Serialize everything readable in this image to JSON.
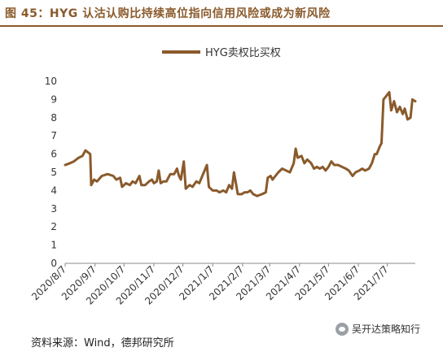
{
  "header": {
    "title": "图 45：HYG 认沽认购比持续高位指向信用风险或成为新风险"
  },
  "footer": {
    "source": "资料来源：Wind，德邦研究所"
  },
  "watermark": {
    "text": "吴开达策略知行",
    "icon": "wechat-icon"
  },
  "chart_data": {
    "type": "line",
    "title": "",
    "xlabel": "",
    "ylabel": "",
    "ylim": [
      0,
      10
    ],
    "yticks": [
      0,
      1,
      2,
      3,
      4,
      5,
      6,
      7,
      8,
      9,
      10
    ],
    "grid": false,
    "legend": "top-center",
    "line_color": "#8a5a2b",
    "x_tick_labels": [
      "2020/8/7",
      "2020/9/7",
      "2020/10/7",
      "2020/11/7",
      "2020/12/7",
      "2021/1/7",
      "2021/2/7",
      "2021/3/7",
      "2021/4/7",
      "2021/5/7",
      "2021/6/7",
      "2021/7/7"
    ],
    "x_start": "2020-08-07",
    "x_end": "2021-08-05",
    "series": [
      {
        "name": "HYG卖权比买权",
        "points": [
          [
            "2020-08-07",
            5.4
          ],
          [
            "2020-08-12",
            5.5
          ],
          [
            "2020-08-16",
            5.6
          ],
          [
            "2020-08-21",
            5.8
          ],
          [
            "2020-08-25",
            5.9
          ],
          [
            "2020-08-28",
            6.2
          ],
          [
            "2020-09-02",
            6.0
          ],
          [
            "2020-09-03",
            4.3
          ],
          [
            "2020-09-06",
            4.6
          ],
          [
            "2020-09-09",
            4.5
          ],
          [
            "2020-09-14",
            4.8
          ],
          [
            "2020-09-20",
            4.9
          ],
          [
            "2020-09-26",
            4.8
          ],
          [
            "2020-09-29",
            4.6
          ],
          [
            "2020-10-03",
            4.7
          ],
          [
            "2020-10-05",
            4.2
          ],
          [
            "2020-10-09",
            4.4
          ],
          [
            "2020-10-13",
            4.3
          ],
          [
            "2020-10-16",
            4.5
          ],
          [
            "2020-10-19",
            4.4
          ],
          [
            "2020-10-23",
            4.8
          ],
          [
            "2020-10-25",
            4.3
          ],
          [
            "2020-10-29",
            4.3
          ],
          [
            "2020-11-02",
            4.5
          ],
          [
            "2020-11-05",
            4.6
          ],
          [
            "2020-11-07",
            4.4
          ],
          [
            "2020-11-10",
            4.5
          ],
          [
            "2020-11-12",
            5.1
          ],
          [
            "2020-11-14",
            4.4
          ],
          [
            "2020-11-17",
            4.5
          ],
          [
            "2020-11-20",
            4.5
          ],
          [
            "2020-11-24",
            4.9
          ],
          [
            "2020-11-28",
            4.9
          ],
          [
            "2020-12-01",
            5.2
          ],
          [
            "2020-12-03",
            4.8
          ],
          [
            "2020-12-05",
            4.6
          ],
          [
            "2020-12-08",
            5.6
          ],
          [
            "2020-12-10",
            4.1
          ],
          [
            "2020-12-14",
            4.3
          ],
          [
            "2020-12-17",
            4.2
          ],
          [
            "2020-12-21",
            4.5
          ],
          [
            "2020-12-24",
            4.4
          ],
          [
            "2020-12-28",
            4.9
          ],
          [
            "2021-01-01",
            5.4
          ],
          [
            "2021-01-03",
            4.2
          ],
          [
            "2021-01-07",
            4.0
          ],
          [
            "2021-01-11",
            4.0
          ],
          [
            "2021-01-14",
            3.9
          ],
          [
            "2021-01-18",
            4.0
          ],
          [
            "2021-01-21",
            3.9
          ],
          [
            "2021-01-24",
            4.3
          ],
          [
            "2021-01-27",
            4.1
          ],
          [
            "2021-01-29",
            5.0
          ],
          [
            "2021-01-31",
            4.4
          ],
          [
            "2021-02-02",
            3.8
          ],
          [
            "2021-02-06",
            3.8
          ],
          [
            "2021-02-09",
            3.9
          ],
          [
            "2021-02-12",
            3.9
          ],
          [
            "2021-02-15",
            4.0
          ],
          [
            "2021-02-18",
            3.8
          ],
          [
            "2021-02-22",
            3.7
          ],
          [
            "2021-02-27",
            3.8
          ],
          [
            "2021-03-03",
            3.9
          ],
          [
            "2021-03-05",
            4.7
          ],
          [
            "2021-03-08",
            4.8
          ],
          [
            "2021-03-10",
            4.6
          ],
          [
            "2021-03-13",
            4.8
          ],
          [
            "2021-03-16",
            5.0
          ],
          [
            "2021-03-20",
            5.2
          ],
          [
            "2021-03-24",
            5.1
          ],
          [
            "2021-03-28",
            5.0
          ],
          [
            "2021-04-01",
            5.5
          ],
          [
            "2021-04-03",
            6.3
          ],
          [
            "2021-04-05",
            5.8
          ],
          [
            "2021-04-09",
            5.9
          ],
          [
            "2021-04-12",
            5.5
          ],
          [
            "2021-04-15",
            5.7
          ],
          [
            "2021-04-19",
            5.5
          ],
          [
            "2021-04-22",
            5.2
          ],
          [
            "2021-04-25",
            5.3
          ],
          [
            "2021-04-28",
            5.2
          ],
          [
            "2021-05-01",
            5.3
          ],
          [
            "2021-05-04",
            5.1
          ],
          [
            "2021-05-07",
            5.3
          ],
          [
            "2021-05-10",
            5.6
          ],
          [
            "2021-05-13",
            5.4
          ],
          [
            "2021-05-17",
            5.4
          ],
          [
            "2021-05-21",
            5.3
          ],
          [
            "2021-05-25",
            5.2
          ],
          [
            "2021-05-28",
            5.1
          ],
          [
            "2021-06-01",
            4.8
          ],
          [
            "2021-06-04",
            5.0
          ],
          [
            "2021-06-08",
            5.1
          ],
          [
            "2021-06-11",
            5.2
          ],
          [
            "2021-06-14",
            5.1
          ],
          [
            "2021-06-18",
            5.2
          ],
          [
            "2021-06-21",
            5.5
          ],
          [
            "2021-06-24",
            6.0
          ],
          [
            "2021-06-26",
            6.0
          ],
          [
            "2021-06-29",
            6.4
          ],
          [
            "2021-07-01",
            6.6
          ],
          [
            "2021-07-03",
            9.0
          ],
          [
            "2021-07-06",
            9.2
          ],
          [
            "2021-07-09",
            9.4
          ],
          [
            "2021-07-11",
            8.4
          ],
          [
            "2021-07-14",
            8.9
          ],
          [
            "2021-07-17",
            8.3
          ],
          [
            "2021-07-20",
            8.6
          ],
          [
            "2021-07-23",
            8.2
          ],
          [
            "2021-07-25",
            8.5
          ],
          [
            "2021-07-28",
            7.9
          ],
          [
            "2021-07-31",
            8.0
          ],
          [
            "2021-08-02",
            9.0
          ],
          [
            "2021-08-05",
            8.9
          ]
        ]
      }
    ]
  }
}
